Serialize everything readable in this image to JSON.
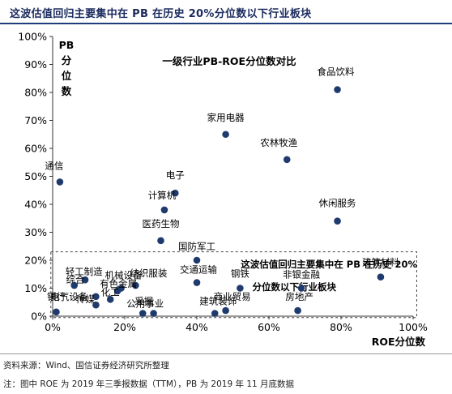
{
  "header": {
    "title": "这波估值回归主要集中在 PB 在历史 20%分位数以下行业板块"
  },
  "footer": {
    "source": "资料来源：Wind、国信证券经济研究所整理",
    "note": "注：图中 ROE 为 2019 年三季报数据（TTM），PB 为 2019 年 11 月底数据"
  },
  "chart_data": {
    "type": "scatter",
    "title": "一级行业PB-ROE分位数对比",
    "xlabel": "ROE分位数",
    "ylabel": "PB分位数",
    "xlim": [
      0,
      100
    ],
    "ylim": [
      0,
      100
    ],
    "x_ticks": [
      "0%",
      "20%",
      "40%",
      "60%",
      "80%",
      "100%"
    ],
    "y_ticks": [
      "0%",
      "10%",
      "20%",
      "30%",
      "40%",
      "50%",
      "60%",
      "70%",
      "80%",
      "90%",
      "100%"
    ],
    "grid": false,
    "marker_color": "#1f3b6e",
    "box_annotation": "这波估值回归主要集中在 PB 在历史 20%分位数以下行业板块",
    "points": [
      {
        "label": "食品饮料",
        "x": 79,
        "y": 81
      },
      {
        "label": "家用电器",
        "x": 48,
        "y": 65
      },
      {
        "label": "农林牧渔",
        "x": 65,
        "y": 56
      },
      {
        "label": "通信",
        "x": 2,
        "y": 48
      },
      {
        "label": "电子",
        "x": 34,
        "y": 44
      },
      {
        "label": "计算机",
        "x": 31,
        "y": 38
      },
      {
        "label": "休闲服务",
        "x": 79,
        "y": 34
      },
      {
        "label": "医药生物",
        "x": 30,
        "y": 27
      },
      {
        "label": "国防军工",
        "x": 40,
        "y": 20
      },
      {
        "label": "建筑材料",
        "x": 91,
        "y": 14
      },
      {
        "label": "综合",
        "x": 9,
        "y": 13
      },
      {
        "label": "轻工制造",
        "x": 6,
        "y": 11
      },
      {
        "label": "交通运输",
        "x": 40,
        "y": 12
      },
      {
        "label": "纺织服装",
        "x": 23,
        "y": 11
      },
      {
        "label": "机械设备",
        "x": 19,
        "y": 10
      },
      {
        "label": "有色金属",
        "x": 18,
        "y": 9
      },
      {
        "label": "钢铁",
        "x": 52,
        "y": 10
      },
      {
        "label": "非银金融",
        "x": 69,
        "y": 10
      },
      {
        "label": "电气设备",
        "x": 12,
        "y": 7
      },
      {
        "label": "传媒",
        "x": 12,
        "y": 4
      },
      {
        "label": "化工",
        "x": 16,
        "y": 6
      },
      {
        "label": "公用事业",
        "x": 25,
        "y": 1
      },
      {
        "label": "采掘",
        "x": 28,
        "y": 1
      },
      {
        "label": "建筑装饰",
        "x": 45,
        "y": 1
      },
      {
        "label": "商业贸易",
        "x": 48,
        "y": 2
      },
      {
        "label": "房地产",
        "x": 68,
        "y": 2
      },
      {
        "label": "银行",
        "x": 1,
        "y": 1.5
      }
    ]
  }
}
